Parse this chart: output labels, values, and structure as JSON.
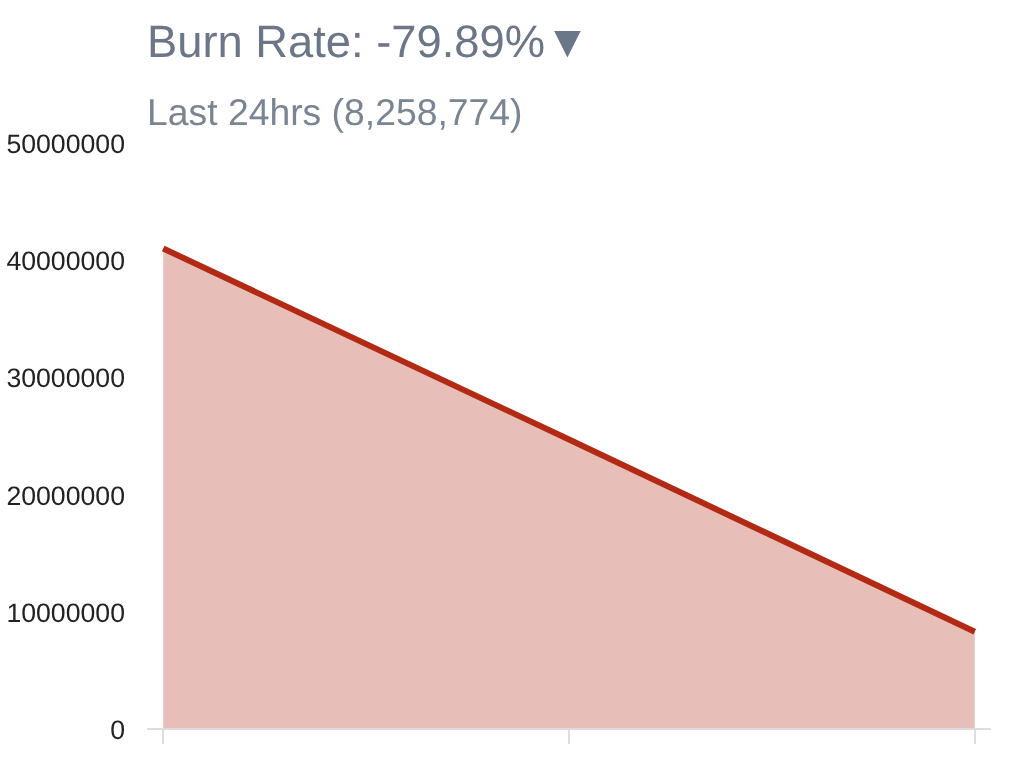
{
  "chart_data": {
    "type": "area",
    "title": "Burn Rate: -79.89%▼",
    "subtitle": "Last 24hrs (8,258,774)",
    "categories": [
      null,
      null,
      null
    ],
    "series": [
      {
        "color": "#b22a14",
        "values": [
          41000000,
          24700000,
          8300000
        ]
      }
    ],
    "ylim": [
      0,
      50000000
    ],
    "yticks": [
      0,
      10000000,
      20000000,
      30000000,
      40000000,
      50000000
    ],
    "grid": false
  }
}
